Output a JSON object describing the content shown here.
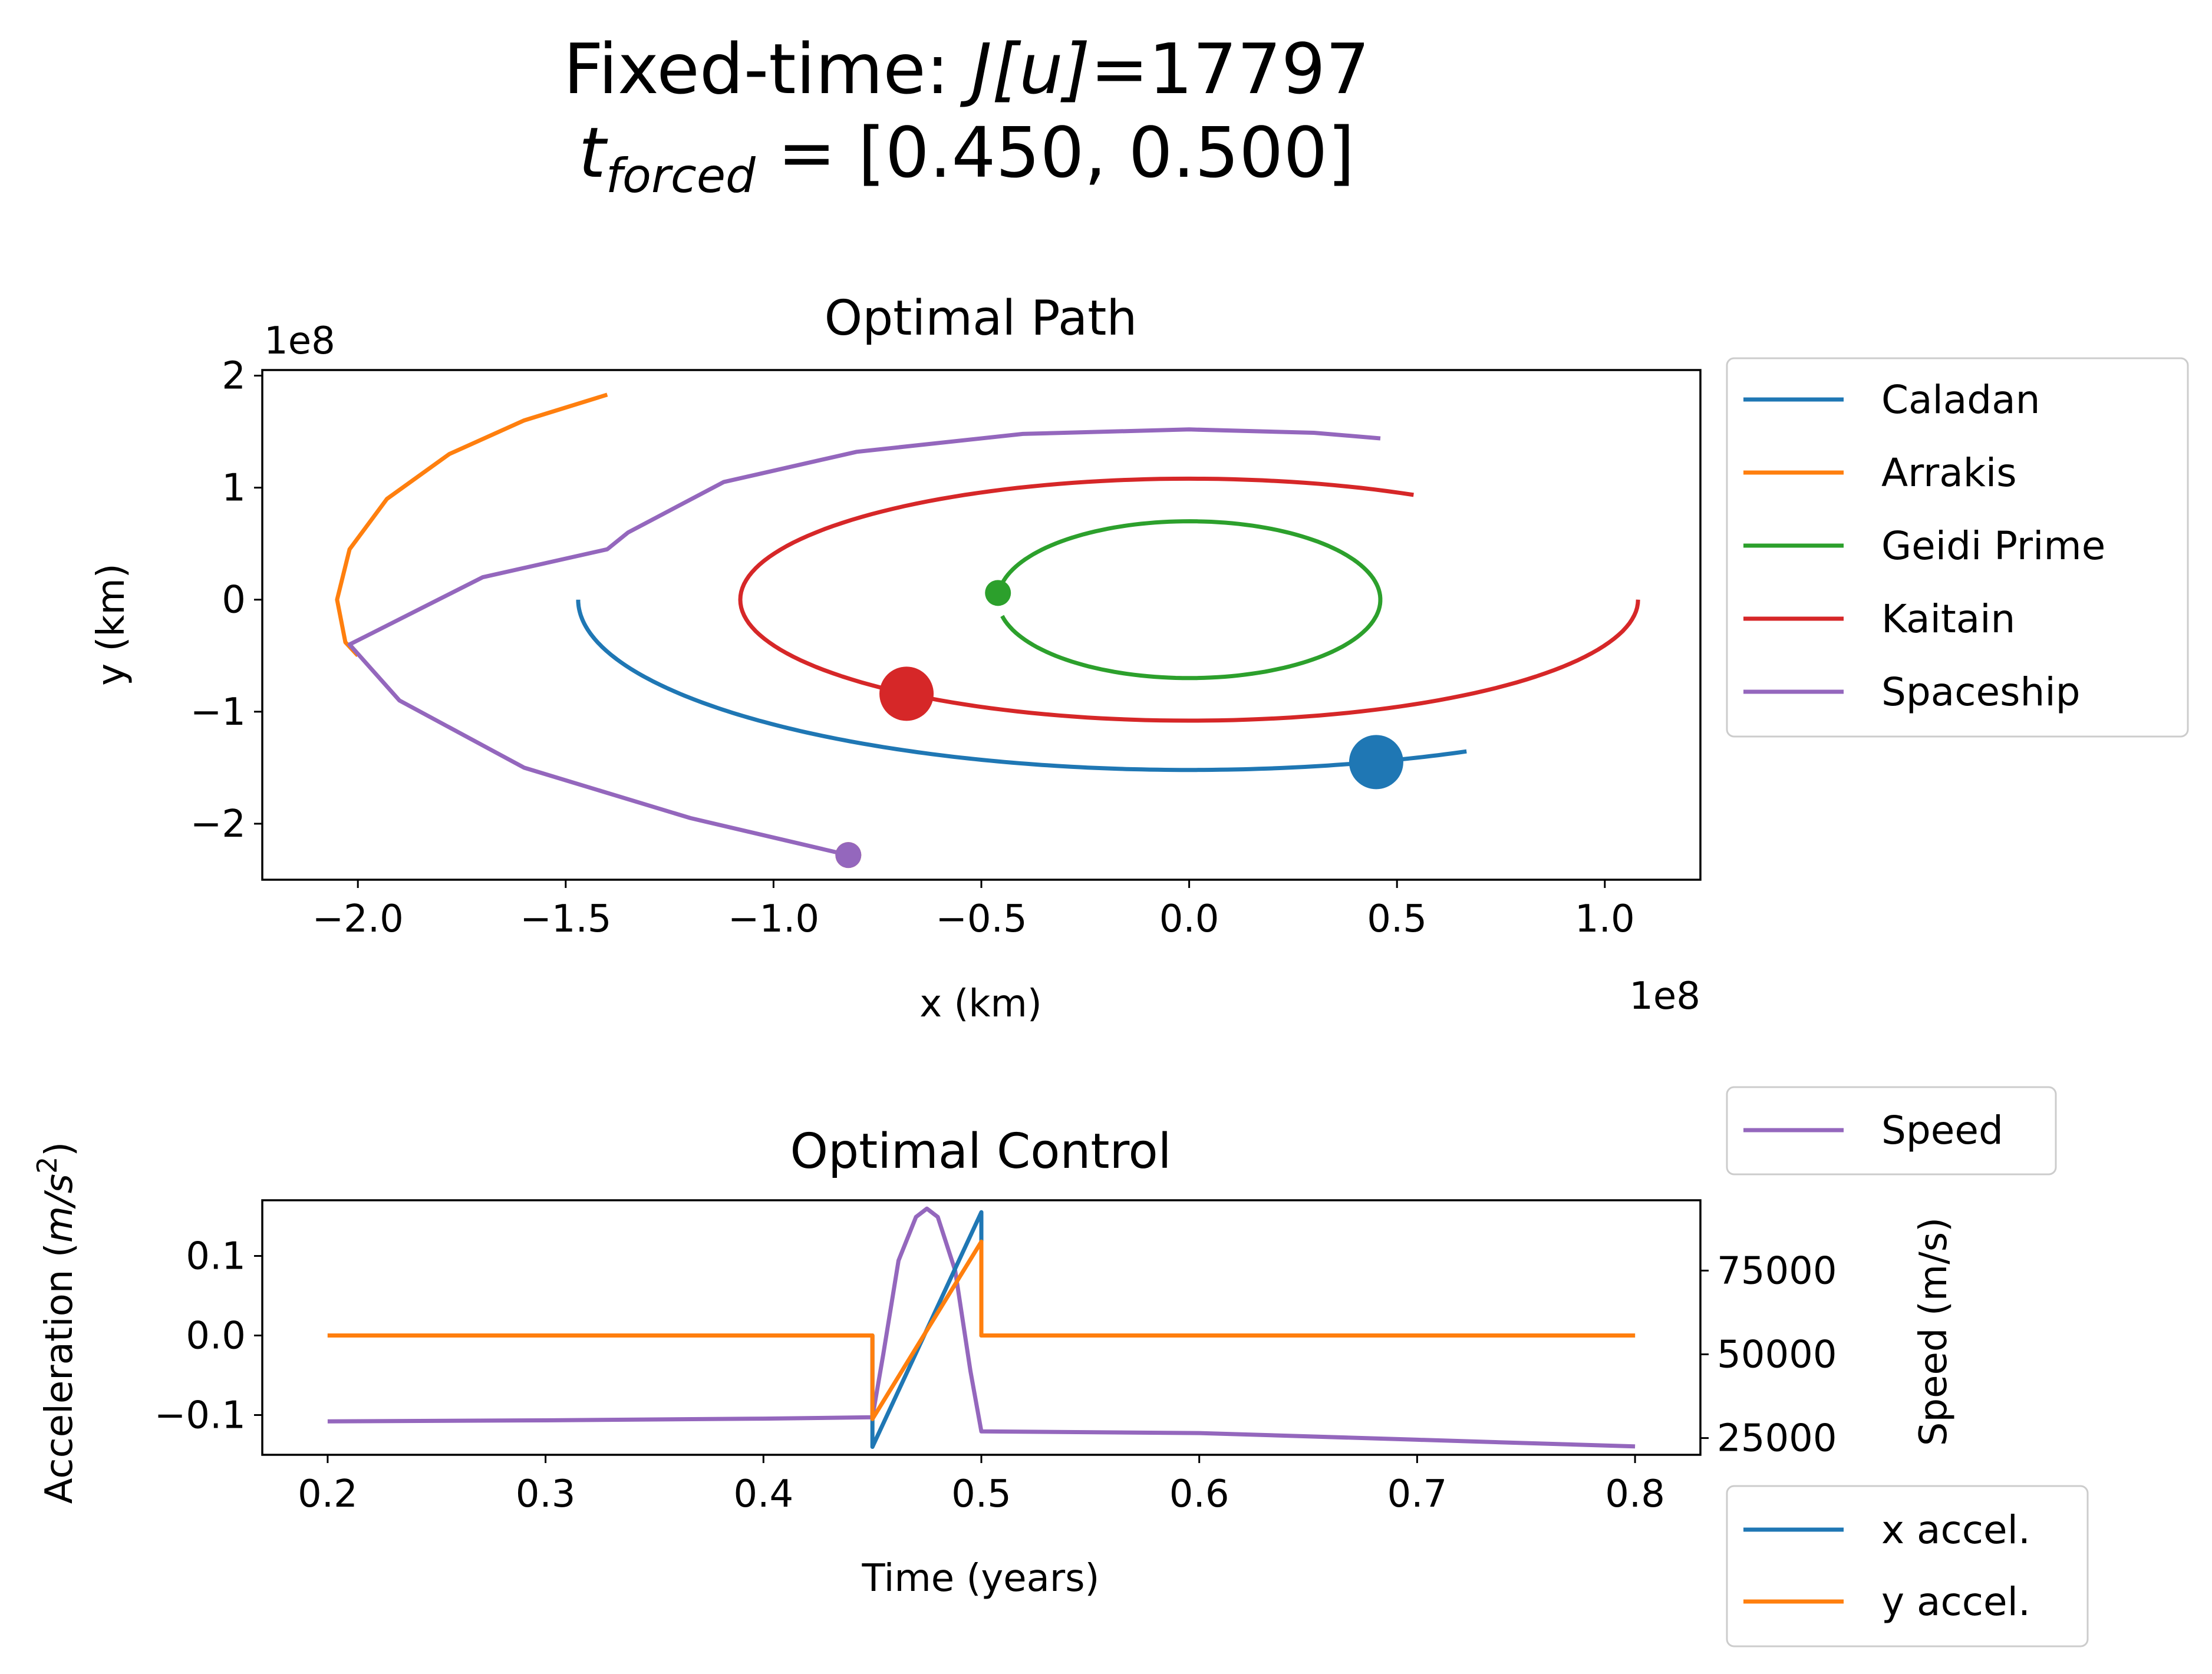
{
  "figure": {
    "suptitle_line1_prefix": "Fixed-time: ",
    "suptitle_line1_math": "J[u]",
    "suptitle_line1_suffix": "=17797",
    "suptitle_line2_math_base": "t",
    "suptitle_line2_math_sub": "forced",
    "suptitle_line2_value": " = [0.450, 0.500]"
  },
  "chart_data": [
    {
      "type": "line",
      "title": "Optimal Path",
      "xlabel": "x (km)",
      "ylabel": "y (km)",
      "x_offset_label": "1e8",
      "y_offset_label": "1e8",
      "xlim": [
        -2.23,
        1.23
      ],
      "ylim": [
        -2.5,
        2.05
      ],
      "xticks": [
        -2.0,
        -1.5,
        -1.0,
        -0.5,
        0.0,
        0.5,
        1.0
      ],
      "xtick_labels": [
        "−2.0",
        "−1.5",
        "−1.0",
        "−0.5",
        "0.0",
        "0.5",
        "1.0"
      ],
      "yticks": [
        -2,
        -1,
        0,
        1,
        2
      ],
      "ytick_labels": [
        "−2",
        "−1",
        "0",
        "1",
        "2"
      ],
      "legend_position": "outside-right-top",
      "series": [
        {
          "name": "Caladan",
          "color": "#1f77b4",
          "shape": "ellipse-arc",
          "ellipse": {
            "cx": 0.0,
            "cy": 0.0,
            "rx": 1.47,
            "ry": 1.52
          },
          "arc_deg": [
            180,
            297
          ],
          "marker": {
            "x": 0.45,
            "y": -1.45,
            "size": "large"
          }
        },
        {
          "name": "Arrakis",
          "color": "#ff7f0e",
          "points": [
            [
              -1.4,
              1.83
            ],
            [
              -1.6,
              1.6
            ],
            [
              -1.78,
              1.3
            ],
            [
              -1.93,
              0.9
            ],
            [
              -2.02,
              0.45
            ],
            [
              -2.05,
              0.0
            ],
            [
              -2.03,
              -0.38
            ],
            [
              -2.0,
              -0.5
            ]
          ],
          "marker": {
            "x": -0.82,
            "y": -2.28,
            "size": "small"
          }
        },
        {
          "name": "Geidi Prime",
          "color": "#2ca02c",
          "shape": "ellipse-arc",
          "ellipse": {
            "cx": 0.0,
            "cy": 0.0,
            "rx": 0.46,
            "ry": 0.7
          },
          "arc_deg": [
            -168,
            170
          ],
          "marker": {
            "x": -0.46,
            "y": 0.06,
            "size": "small"
          }
        },
        {
          "name": "Kaitain",
          "color": "#d62728",
          "shape": "ellipse-arc",
          "ellipse": {
            "cx": 0.0,
            "cy": 0.0,
            "rx": 1.08,
            "ry": 1.08
          },
          "arc_deg": [
            -300,
            0
          ],
          "marker": {
            "x": -0.68,
            "y": -0.84,
            "size": "large"
          }
        },
        {
          "name": "Spaceship",
          "color": "#9467bd",
          "points": [
            [
              0.46,
              1.44
            ],
            [
              0.3,
              1.49
            ],
            [
              0.0,
              1.52
            ],
            [
              -0.4,
              1.48
            ],
            [
              -0.8,
              1.32
            ],
            [
              -1.12,
              1.05
            ],
            [
              -1.35,
              0.6
            ],
            [
              -1.4,
              0.45
            ],
            [
              -1.7,
              0.2
            ],
            [
              -2.02,
              -0.4
            ],
            [
              -1.9,
              -0.9
            ],
            [
              -1.6,
              -1.5
            ],
            [
              -1.2,
              -1.95
            ],
            [
              -0.82,
              -2.28
            ]
          ],
          "marker": {
            "x": -0.82,
            "y": -2.28,
            "size": "small",
            "symbol": "star"
          }
        }
      ]
    },
    {
      "type": "line",
      "title": "Optimal Control",
      "xlabel": "Time (years)",
      "ylabel": "Acceleration (m/s²)",
      "ylabel_math_parts": [
        "Acceleration (",
        "m/s",
        "2",
        ")"
      ],
      "y2label": "Speed (m/s)",
      "xlim": [
        0.17,
        0.83
      ],
      "ylim": [
        -0.15,
        0.17
      ],
      "y2lim": [
        20000,
        96000
      ],
      "xticks": [
        0.2,
        0.3,
        0.4,
        0.5,
        0.6,
        0.7,
        0.8
      ],
      "xtick_labels": [
        "0.2",
        "0.3",
        "0.4",
        "0.5",
        "0.6",
        "0.7",
        "0.8"
      ],
      "yticks": [
        -0.1,
        0.0,
        0.1
      ],
      "ytick_labels": [
        "−0.1",
        "0.0",
        "0.1"
      ],
      "y2ticks": [
        25000,
        50000,
        75000
      ],
      "y2tick_labels": [
        "25000",
        "50000",
        "75000"
      ],
      "legend_position": "outside-right",
      "series": [
        {
          "name": "x accel.",
          "color": "#1f77b4",
          "axis": "left",
          "points": [
            [
              0.2,
              0.0
            ],
            [
              0.45,
              0.0
            ],
            [
              0.45,
              -0.14
            ],
            [
              0.5,
              0.155
            ],
            [
              0.5,
              0.0
            ],
            [
              0.8,
              0.0
            ]
          ]
        },
        {
          "name": "y accel.",
          "color": "#ff7f0e",
          "axis": "left",
          "points": [
            [
              0.2,
              0.0
            ],
            [
              0.45,
              0.0
            ],
            [
              0.45,
              -0.105
            ],
            [
              0.5,
              0.118
            ],
            [
              0.5,
              0.0
            ],
            [
              0.8,
              0.0
            ]
          ]
        },
        {
          "name": "Speed",
          "color": "#9467bd",
          "axis": "right",
          "points": [
            [
              0.2,
              30000
            ],
            [
              0.3,
              30300
            ],
            [
              0.4,
              30800
            ],
            [
              0.45,
              31200
            ],
            [
              0.455,
              50000
            ],
            [
              0.462,
              78000
            ],
            [
              0.47,
              91000
            ],
            [
              0.475,
              93500
            ],
            [
              0.48,
              91000
            ],
            [
              0.488,
              75000
            ],
            [
              0.495,
              45000
            ],
            [
              0.5,
              27000
            ],
            [
              0.6,
              26500
            ],
            [
              0.7,
              24500
            ],
            [
              0.8,
              22500
            ]
          ]
        }
      ]
    }
  ]
}
